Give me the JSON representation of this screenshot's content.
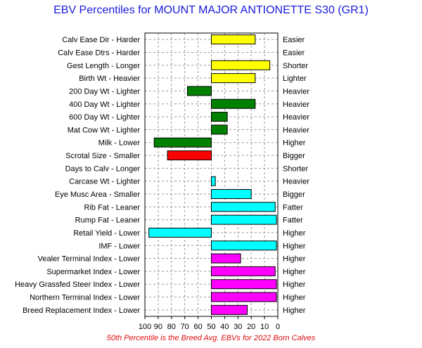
{
  "chart_data": {
    "type": "bar",
    "title": "EBV Percentiles for MOUNT MAJOR ANTIONETTE S30 (GR1)",
    "footnote": "50th Percentile is the Breed Avg. EBVs for 2022 Born Calves",
    "xlim": [
      100,
      0
    ],
    "baseline": 50,
    "xticks": [
      100,
      90,
      80,
      70,
      60,
      50,
      40,
      30,
      20,
      10,
      0
    ],
    "grid": true,
    "colors": {
      "yellow": "#ffff00",
      "green": "#008000",
      "red": "#ff0000",
      "cyan": "#00ffff",
      "magenta": "#ff00ff"
    },
    "traits": [
      {
        "left_label": "Calv Ease Dir - Harder",
        "right_label": "Easier",
        "value": 17,
        "color": "yellow"
      },
      {
        "left_label": "Calv Ease Dtrs - Harder",
        "right_label": "Easier",
        "value": null,
        "color": "yellow"
      },
      {
        "left_label": "Gest Length - Longer",
        "right_label": "Shorter",
        "value": 6,
        "color": "yellow"
      },
      {
        "left_label": "Birth Wt - Heavier",
        "right_label": "Lighter",
        "value": 17,
        "color": "yellow"
      },
      {
        "left_label": "200 Day Wt - Lighter",
        "right_label": "Heavier",
        "value": 68,
        "color": "green"
      },
      {
        "left_label": "400 Day Wt - Lighter",
        "right_label": "Heavier",
        "value": 17,
        "color": "green"
      },
      {
        "left_label": "600 Day Wt - Lighter",
        "right_label": "Heavier",
        "value": 38,
        "color": "green"
      },
      {
        "left_label": "Mat Cow Wt - Lighter",
        "right_label": "Heavier",
        "value": 38,
        "color": "green"
      },
      {
        "left_label": "Milk - Lower",
        "right_label": "Higher",
        "value": 93,
        "color": "green"
      },
      {
        "left_label": "Scrotal Size - Smaller",
        "right_label": "Bigger",
        "value": 83,
        "color": "red"
      },
      {
        "left_label": "Days to Calv - Longer",
        "right_label": "Shorter",
        "value": null,
        "color": "red"
      },
      {
        "left_label": "Carcase Wt - Lighter",
        "right_label": "Heavier",
        "value": 47,
        "color": "cyan"
      },
      {
        "left_label": "Eye Musc Area - Smaller",
        "right_label": "Bigger",
        "value": 20,
        "color": "cyan"
      },
      {
        "left_label": "Rib Fat - Leaner",
        "right_label": "Fatter",
        "value": 2,
        "color": "cyan"
      },
      {
        "left_label": "Rump Fat - Leaner",
        "right_label": "Fatter",
        "value": 1,
        "color": "cyan"
      },
      {
        "left_label": "Retail Yield - Lower",
        "right_label": "Higher",
        "value": 97,
        "color": "cyan"
      },
      {
        "left_label": "IMF - Lower",
        "right_label": "Higher",
        "value": 1,
        "color": "cyan"
      },
      {
        "left_label": "Vealer Terminal Index - Lower",
        "right_label": "Higher",
        "value": 28,
        "color": "magenta"
      },
      {
        "left_label": "Supermarket Index - Lower",
        "right_label": "Higher",
        "value": 2,
        "color": "magenta"
      },
      {
        "left_label": "Heavy Grassfed Steer Index - Lower",
        "right_label": "Higher",
        "value": 1,
        "color": "magenta"
      },
      {
        "left_label": "Northern Terminal Index - Lower",
        "right_label": "Higher",
        "value": 1,
        "color": "magenta"
      },
      {
        "left_label": "Breed Replacement Index - Lower",
        "right_label": "Higher",
        "value": 23,
        "color": "magenta"
      }
    ]
  }
}
